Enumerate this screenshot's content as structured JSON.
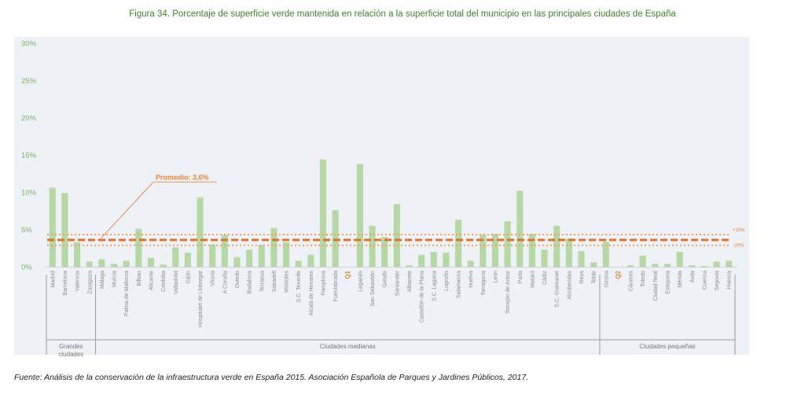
{
  "title": "Figura 34. Porcentaje de superficie verde mantenida en relación a la superficie total del municipio en las principales ciudades de España",
  "source": "Fuente: Análisis de la conservación de la infraestructura verde en España 2015. Asociación Española de Parques y Jardines Públicos, 2017.",
  "chart_data": {
    "type": "bar",
    "title": "Figura 34. Porcentaje de superficie verde mantenida en relación a la superficie total del municipio en las principales ciudades de España",
    "ylim": [
      0,
      30
    ],
    "y_ticks": [
      "0%",
      "5%",
      "10%",
      "15%",
      "20%",
      "25%",
      "30%"
    ],
    "y_tick_values": [
      0,
      5,
      10,
      15,
      20,
      25,
      30
    ],
    "categories": [
      "Madrid",
      "Barcelona",
      "Valencia",
      "Zaragoza",
      "Málaga",
      "Murcia",
      "Palma de Mallorca",
      "Bilbao",
      "Alicante",
      "Córdoba",
      "Valladolid",
      "Gijón",
      "Hospitalet de Llobregat",
      "Vitoria",
      "A Coruña",
      "Oviedo",
      "Badalona",
      "Terrassa",
      "Sabadell",
      "Móstoles",
      "S.C. Tenerife",
      "Alcalá de Henares",
      "Pamplona",
      "Fuenlabrada",
      "Q1",
      "Leganés",
      "San Sebastián",
      "Getafe",
      "Santander",
      "Albacete",
      "Castellón de la Plana",
      "S.C. Laguna",
      "Logroño",
      "Salamanca",
      "Huelva",
      "Tarragona",
      "León",
      "Torrejón de Ardoz",
      "Parla",
      "Mataró",
      "Cádiz",
      "S.C. Gramanet",
      "Alcobendas",
      "Reus",
      "Telde",
      "Girona",
      "Q2",
      "Cáceres",
      "Toledo",
      "Ciudad Real",
      "Estepona",
      "Mérida",
      "Ávila",
      "Cuenca",
      "Segovia",
      "Huesca"
    ],
    "values": [
      10.6,
      9.9,
      3.3,
      0.7,
      1.0,
      0.4,
      0.8,
      5.1,
      1.2,
      0.3,
      2.6,
      1.9,
      9.3,
      3.0,
      4.3,
      1.3,
      2.3,
      2.9,
      5.2,
      3.3,
      0.8,
      1.6,
      14.4,
      7.6,
      null,
      13.8,
      5.5,
      4.0,
      8.4,
      0.2,
      1.6,
      2.0,
      1.9,
      6.3,
      0.8,
      4.3,
      4.4,
      6.1,
      10.2,
      4.4,
      2.3,
      5.5,
      3.8,
      2.1,
      0.6,
      3.4,
      null,
      0.2,
      1.5,
      0.4,
      0.4,
      2.0,
      0.2,
      0.1,
      0.7,
      0.8
    ],
    "average": 3.6,
    "average_label": "Promedio: 3,6%",
    "band_upper_label": "+20%",
    "band_lower_label": "-20%",
    "band_upper_value": 4.32,
    "band_lower_value": 2.88,
    "groups": [
      {
        "name": "Grandes ciudades",
        "from": 0,
        "to": 3
      },
      {
        "name": "Ciudades medianas",
        "from": 4,
        "to": 44
      },
      {
        "name": "Ciudades pequeñas",
        "from": 45,
        "to": 55
      }
    ],
    "colors": {
      "bar": "#b5d8a4",
      "average": "#e0722a",
      "band": "#f0a060",
      "axis_text": "#7cb265"
    }
  }
}
